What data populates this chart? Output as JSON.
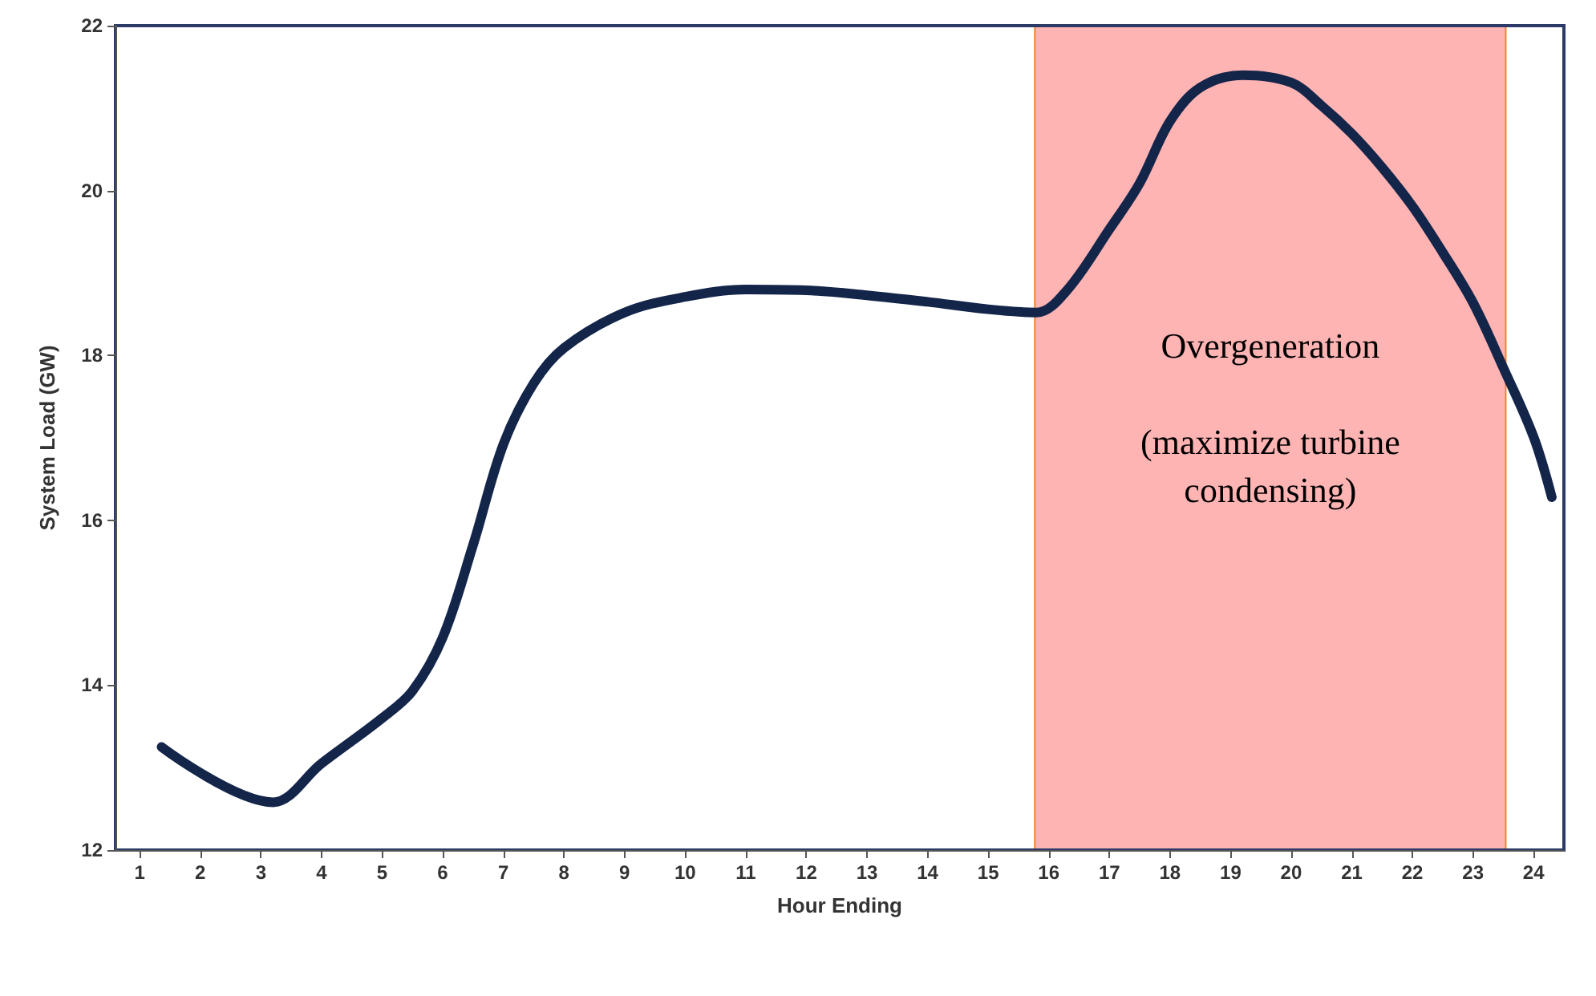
{
  "chart_data": {
    "type": "line",
    "xlabel": "Hour Ending",
    "ylabel": "System Load (GW)",
    "xlim": [
      0.6,
      24.5
    ],
    "xticks": [
      1,
      2,
      3,
      4,
      5,
      6,
      7,
      8,
      9,
      10,
      11,
      12,
      13,
      14,
      15,
      16,
      17,
      18,
      19,
      20,
      21,
      22,
      23,
      24
    ],
    "ylim": [
      12,
      22
    ],
    "yticks": [
      12,
      14,
      16,
      18,
      20,
      22
    ],
    "grid": false,
    "marker": "none",
    "line_style": "solid",
    "series": [
      {
        "color": "#14254a",
        "x": [
          1.36,
          3.2,
          4,
          5,
          5.5,
          6,
          6.5,
          7,
          7.5,
          8,
          9,
          10,
          11,
          12,
          13,
          14,
          15,
          15.8,
          16.3,
          17,
          17.5,
          18,
          18.5,
          19.2,
          20,
          20.5,
          21,
          21.5,
          22,
          22.5,
          23,
          23.5,
          24,
          24.3
        ],
        "values": [
          13.25,
          12.58,
          13.05,
          13.6,
          13.93,
          14.58,
          15.7,
          16.92,
          17.66,
          18.09,
          18.52,
          18.71,
          18.8,
          18.79,
          18.73,
          18.65,
          18.56,
          18.52,
          18.79,
          19.53,
          20.09,
          20.84,
          21.25,
          21.4,
          21.31,
          21.03,
          20.69,
          20.28,
          19.81,
          19.25,
          18.64,
          17.85,
          17.01,
          16.28
        ]
      }
    ],
    "bands": [
      {
        "axis": "x",
        "from": 15.77,
        "to": 23.54,
        "label": "Overgeneration\n\n(maximize turbine\ncondensing)",
        "color": "#ffb0b0"
      }
    ]
  }
}
